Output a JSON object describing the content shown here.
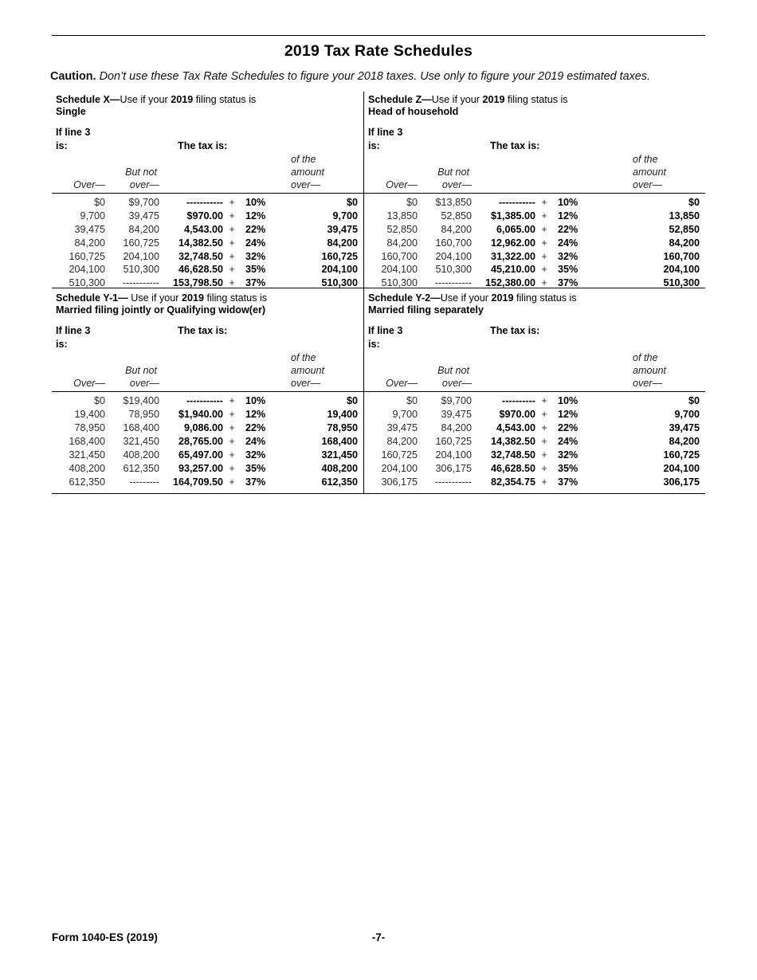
{
  "page": {
    "title": "2019 Tax Rate Schedules",
    "caution_label": "Caution.",
    "caution_text": "Don’t use these Tax Rate Schedules to figure your 2018 taxes. Use only to figure your 2019 estimated taxes.",
    "footer_form": "Form 1040-ES (2019)",
    "footer_page": "-7-"
  },
  "labels": {
    "if_line_1": "If line 3",
    "if_line_2": "is:",
    "tax_is": "The tax is:",
    "over_head": "Over—",
    "butnot_1": "But not",
    "butnot_2": "over—",
    "amount_1": "of the",
    "amount_2": "amount",
    "amount_3": "over—",
    "plus": "+"
  },
  "schedules": [
    {
      "key": "schedule-x",
      "title_bold": "Schedule X—",
      "title_mid": "Use if your ",
      "title_year": "2019",
      "title_end": " filing status is",
      "status": "Single",
      "rows": [
        {
          "over": "$0",
          "but_not": "$9,700",
          "tax": "-----------",
          "rate": "10%",
          "amount": "$0"
        },
        {
          "over": "9,700",
          "but_not": "39,475",
          "tax": "$970.00",
          "rate": "12%",
          "amount": "9,700"
        },
        {
          "over": "39,475",
          "but_not": "84,200",
          "tax": "4,543.00",
          "rate": "22%",
          "amount": "39,475"
        },
        {
          "over": "84,200",
          "but_not": "160,725",
          "tax": "14,382.50",
          "rate": "24%",
          "amount": "84,200"
        },
        {
          "over": "160,725",
          "but_not": "204,100",
          "tax": "32,748.50",
          "rate": "32%",
          "amount": "160,725"
        },
        {
          "over": "204,100",
          "but_not": "510,300",
          "tax": "46,628.50",
          "rate": "35%",
          "amount": "204,100"
        },
        {
          "over": "510,300",
          "but_not": "-----------",
          "tax": "153,798.50",
          "rate": "37%",
          "amount": "510,300"
        }
      ]
    },
    {
      "key": "schedule-z",
      "title_bold": "Schedule Z—",
      "title_mid": "Use if your ",
      "title_year": "2019",
      "title_end": " filing status is",
      "status": "Head of household",
      "rows": [
        {
          "over": "$0",
          "but_not": "$13,850",
          "tax": "-----------",
          "rate": "10%",
          "amount": "$0"
        },
        {
          "over": "13,850",
          "but_not": "52,850",
          "tax": "$1,385.00",
          "rate": "12%",
          "amount": "13,850"
        },
        {
          "over": "52,850",
          "but_not": "84,200",
          "tax": "6,065.00",
          "rate": "22%",
          "amount": "52,850"
        },
        {
          "over": "84,200",
          "but_not": "160,700",
          "tax": "12,962.00",
          "rate": "24%",
          "amount": "84,200"
        },
        {
          "over": "160,700",
          "but_not": "204,100",
          "tax": "31,322.00",
          "rate": "32%",
          "amount": "160,700"
        },
        {
          "over": "204,100",
          "but_not": "510,300",
          "tax": "45,210.00",
          "rate": "35%",
          "amount": "204,100"
        },
        {
          "over": "510,300",
          "but_not": "-----------",
          "tax": "152,380.00",
          "rate": "37%",
          "amount": "510,300"
        }
      ]
    },
    {
      "key": "schedule-y1",
      "title_bold": "Schedule Y-1—",
      "title_mid": " Use if your ",
      "title_year": "2019",
      "title_end": " filing status is",
      "status": "Married filing jointly or Qualifying widow(er)",
      "rows": [
        {
          "over": "$0",
          "but_not": "$19,400",
          "tax": "-----------",
          "rate": "10%",
          "amount": "$0"
        },
        {
          "over": "19,400",
          "but_not": "78,950",
          "tax": "$1,940.00",
          "rate": "12%",
          "amount": "19,400"
        },
        {
          "over": "78,950",
          "but_not": "168,400",
          "tax": "9,086.00",
          "rate": "22%",
          "amount": "78,950"
        },
        {
          "over": "168,400",
          "but_not": "321,450",
          "tax": "28,765.00",
          "rate": "24%",
          "amount": "168,400"
        },
        {
          "over": "321,450",
          "but_not": "408,200",
          "tax": "65,497.00",
          "rate": "32%",
          "amount": "321,450"
        },
        {
          "over": "408,200",
          "but_not": "612,350",
          "tax": "93,257.00",
          "rate": "35%",
          "amount": "408,200"
        },
        {
          "over": "612,350",
          "but_not": "---------",
          "tax": "164,709.50",
          "rate": "37%",
          "amount": "612,350"
        }
      ]
    },
    {
      "key": "schedule-y2",
      "title_bold": "Schedule Y-2—",
      "title_mid": "Use if your ",
      "title_year": "2019",
      "title_end": " filing status is",
      "status": "Married filing separately",
      "rows": [
        {
          "over": "$0",
          "but_not": "$9,700",
          "tax": "----------",
          "rate": "10%",
          "amount": "$0"
        },
        {
          "over": "9,700",
          "but_not": "39,475",
          "tax": "$970.00",
          "rate": "12%",
          "amount": "9,700"
        },
        {
          "over": "39,475",
          "but_not": "84,200",
          "tax": "4,543.00",
          "rate": "22%",
          "amount": "39,475"
        },
        {
          "over": "84,200",
          "but_not": "160,725",
          "tax": "14,382.50",
          "rate": "24%",
          "amount": "84,200"
        },
        {
          "over": "160,725",
          "but_not": "204,100",
          "tax": "32,748.50",
          "rate": "32%",
          "amount": "160,725"
        },
        {
          "over": "204,100",
          "but_not": "306,175",
          "tax": "46,628.50",
          "rate": "35%",
          "amount": "204,100"
        },
        {
          "over": "306,175",
          "but_not": "-----------",
          "tax": "82,354.75",
          "rate": "37%",
          "amount": "306,175"
        }
      ]
    }
  ]
}
